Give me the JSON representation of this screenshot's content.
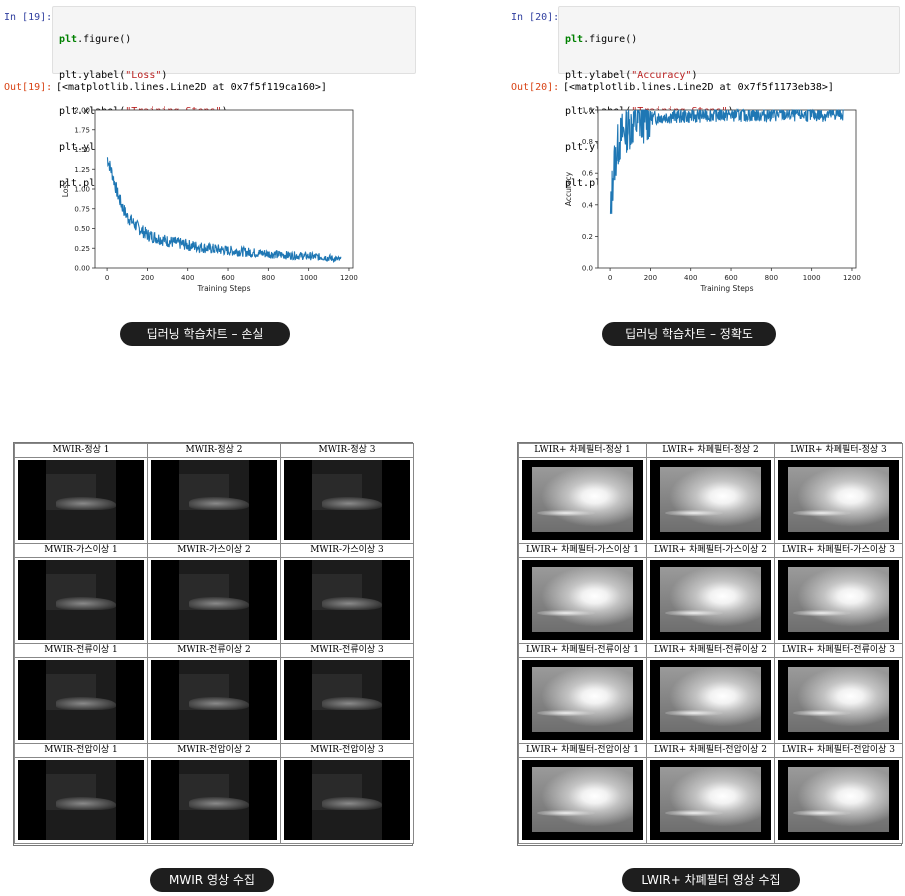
{
  "loss_cell": {
    "in_prompt": "In [19]:",
    "out_prompt": "Out[19]:",
    "code": [
      "plt.figure()",
      "plt.ylabel(\"Loss\")",
      "plt.xlabel(\"Training Steps\")",
      "plt.ylim([0,2])",
      "plt.plot(batch_stats_callback.batch_losses)"
    ],
    "output": "[<matplotlib.lines.Line2D at 0x7f5f119ca160>]",
    "caption": "딥러닝 학습차트 – 손실"
  },
  "acc_cell": {
    "in_prompt": "In [20]:",
    "out_prompt": "Out[20]:",
    "code": [
      "plt.figure()",
      "plt.ylabel(\"Accuracy\")",
      "plt.xlabel(\"Training Steps\")",
      "plt.ylim([0,1])",
      "plt.plot(batch_stats_callback.batch_acc)"
    ],
    "output": "[<matplotlib.lines.Line2D at 0x7f5f1173eb38>]",
    "caption": "딥러닝 학습차트 – 정확도"
  },
  "chart_data": [
    {
      "type": "line",
      "xlabel": "Training Steps",
      "ylabel": "Loss",
      "ylim": [
        0,
        2
      ],
      "xlim": [
        -60,
        1220
      ],
      "xticks": [
        "0",
        "200",
        "400",
        "600",
        "800",
        "1000",
        "1200"
      ],
      "yticks": [
        "0.00",
        "0.25",
        "0.50",
        "0.75",
        "1.00",
        "1.25",
        "1.50",
        "1.75",
        "2.00"
      ],
      "color": "#1f77b4",
      "x": [
        0,
        25,
        50,
        75,
        100,
        150,
        200,
        300,
        400,
        500,
        600,
        700,
        800,
        900,
        1000,
        1100,
        1160
      ],
      "values": [
        1.4,
        1.2,
        0.95,
        0.78,
        0.65,
        0.52,
        0.42,
        0.34,
        0.29,
        0.25,
        0.22,
        0.2,
        0.18,
        0.16,
        0.15,
        0.13,
        0.1
      ]
    },
    {
      "type": "line",
      "xlabel": "Training Steps",
      "ylabel": "Accuracy",
      "ylim": [
        0,
        1
      ],
      "xlim": [
        -60,
        1220
      ],
      "xticks": [
        "0",
        "200",
        "400",
        "600",
        "800",
        "1000",
        "1200"
      ],
      "yticks": [
        "0.0",
        "0.2",
        "0.4",
        "0.6",
        "0.8",
        "1.0"
      ],
      "color": "#1f77b4",
      "x": [
        0,
        10,
        20,
        40,
        60,
        100,
        150,
        200,
        300,
        400,
        500,
        600,
        700,
        800,
        900,
        1000,
        1100,
        1160
      ],
      "values": [
        0.28,
        0.5,
        0.65,
        0.78,
        0.85,
        0.9,
        0.93,
        0.95,
        0.96,
        0.96,
        0.97,
        0.97,
        0.97,
        0.97,
        0.97,
        0.97,
        0.97,
        0.98
      ]
    }
  ],
  "mwir": {
    "caption": "MWIR 영상 수집",
    "labels": [
      "MWIR-정상 1",
      "MWIR-정상 2",
      "MWIR-정상 3",
      "MWIR-가스이상 1",
      "MWIR-가스이상 2",
      "MWIR-가스이상 3",
      "MWIR-전류이상 1",
      "MWIR-전류이상 2",
      "MWIR-전류이상 3",
      "MWIR-전압이상 1",
      "MWIR-전압이상 2",
      "MWIR-전압이상 3"
    ]
  },
  "lwir": {
    "caption": "LWIR+ 차폐필터 영상 수집",
    "labels": [
      "LWIR+ 차폐필터-정상 1",
      "LWIR+ 차폐필터-정상 2",
      "LWIR+ 차폐필터-정상 3",
      "LWIR+ 차폐필터-가스이상 1",
      "LWIR+ 차폐필터-가스이상 2",
      "LWIR+ 차폐필터-가스이상 3",
      "LWIR+ 차폐필터-전류이상 1",
      "LWIR+ 차폐필터-전류이상 2",
      "LWIR+ 차폐필터-전류이상 3",
      "LWIR+ 차폐필터-전압이상 1",
      "LWIR+ 차폐필터-전압이상 2",
      "LWIR+ 차폐필터-전압이상 3"
    ]
  }
}
